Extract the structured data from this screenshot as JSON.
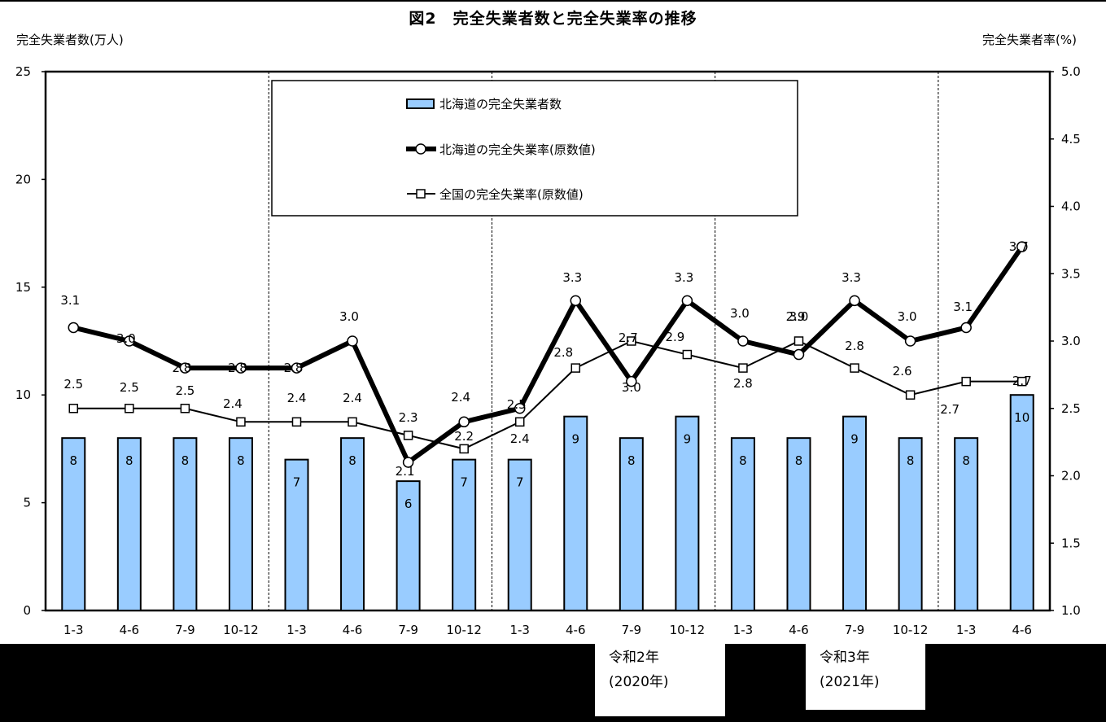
{
  "title": "図2　完全失業者数と完全失業率の推移",
  "axis": {
    "left_label": "完全失業者数(万人)",
    "right_label": "完全失業者率(%)",
    "left_ticks": [
      "0",
      "5",
      "10",
      "15",
      "20",
      "25"
    ],
    "right_ticks": [
      "1.0",
      "1.5",
      "2.0",
      "2.5",
      "3.0",
      "3.5",
      "4.0",
      "4.5",
      "5.0"
    ]
  },
  "legend": {
    "bars": "北海道の完全失業者数",
    "hokkaido_rate": "北海道の完全失業率(原数値)",
    "national_rate": "全国の完全失業率(原数値)"
  },
  "era_labels": [
    {
      "line1": "令和2年",
      "line2": "(2020年)"
    },
    {
      "line1": "令和3年",
      "line2": "(2021年)"
    }
  ],
  "colors": {
    "bar_fill": "#99ccff",
    "line": "#000000",
    "background": "#ffffff"
  },
  "chart_data": {
    "type": "bar+line",
    "title": "図2　完全失業者数と完全失業率の推移",
    "xlabel": "",
    "ylabel": "完全失業者数(万人)",
    "ylabel_right": "完全失業者率(%)",
    "ylim": [
      0,
      25
    ],
    "ylim_right": [
      1.0,
      5.0
    ],
    "legend_position": "top-center inside plot",
    "grid": false,
    "categories": [
      "1-3",
      "4-6",
      "7-9",
      "10-12",
      "1-3",
      "4-6",
      "7-9",
      "10-12",
      "1-3",
      "4-6",
      "7-9",
      "10-12",
      "1-3",
      "4-6",
      "7-9",
      "10-12",
      "1-3",
      "4-6"
    ],
    "series": [
      {
        "name": "北海道の完全失業者数",
        "type": "bar",
        "axis": "left",
        "values": [
          8,
          8,
          8,
          8,
          7,
          8,
          6,
          7,
          7,
          9,
          8,
          9,
          8,
          8,
          9,
          8,
          8,
          10
        ]
      },
      {
        "name": "北海道の完全失業率(原数値)",
        "type": "line",
        "axis": "right",
        "marker": "circle",
        "values": [
          3.1,
          3.0,
          2.8,
          2.8,
          2.8,
          3.0,
          2.1,
          2.4,
          2.5,
          3.3,
          2.7,
          3.3,
          3.0,
          2.9,
          3.3,
          3.0,
          3.1,
          3.7
        ]
      },
      {
        "name": "全国の完全失業率(原数値)",
        "type": "line",
        "axis": "right",
        "marker": "square",
        "values": [
          2.5,
          2.5,
          2.5,
          2.4,
          2.4,
          2.4,
          2.3,
          2.2,
          2.4,
          2.8,
          3.0,
          2.9,
          2.8,
          3.0,
          2.8,
          2.6,
          2.7,
          2.7
        ]
      }
    ],
    "year_dividers_after_index": [
      3,
      7,
      11,
      15
    ]
  }
}
